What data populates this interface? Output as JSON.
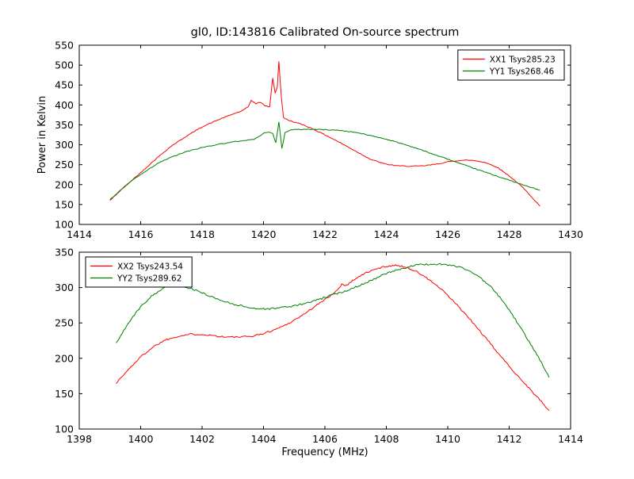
{
  "figure": {
    "title": "gl0, ID:143816 Calibrated On-source spectrum",
    "xlabel": "Frequency (MHz)",
    "ylabel": "Power in Kelvin"
  },
  "chart_data": [
    {
      "type": "line",
      "title": "gl0, ID:143816 Calibrated On-source spectrum",
      "ylabel": "Power in Kelvin",
      "xlabel": "",
      "xlim": [
        1414,
        1430
      ],
      "ylim": [
        100,
        550
      ],
      "xticks": [
        1414,
        1416,
        1418,
        1420,
        1422,
        1424,
        1426,
        1428,
        1430
      ],
      "yticks": [
        100,
        150,
        200,
        250,
        300,
        350,
        400,
        450,
        500,
        550
      ],
      "grid": false,
      "legend_position": "upper right",
      "series": [
        {
          "name": "XX1 Tsys285.23",
          "color": "#ff0000",
          "noise": 1.0,
          "points": [
            [
              1415.0,
              160
            ],
            [
              1415.3,
              182
            ],
            [
              1415.6,
              203
            ],
            [
              1416.0,
              230
            ],
            [
              1416.5,
              265
            ],
            [
              1417.0,
              297
            ],
            [
              1417.5,
              322
            ],
            [
              1418.0,
              345
            ],
            [
              1418.5,
              362
            ],
            [
              1419.0,
              377
            ],
            [
              1419.3,
              385
            ],
            [
              1419.5,
              395
            ],
            [
              1419.6,
              412
            ],
            [
              1419.75,
              403
            ],
            [
              1419.9,
              407
            ],
            [
              1420.05,
              398
            ],
            [
              1420.2,
              395
            ],
            [
              1420.3,
              468
            ],
            [
              1420.38,
              430
            ],
            [
              1420.45,
              445
            ],
            [
              1420.5,
              510
            ],
            [
              1420.58,
              420
            ],
            [
              1420.65,
              368
            ],
            [
              1420.8,
              362
            ],
            [
              1421.0,
              357
            ],
            [
              1421.3,
              350
            ],
            [
              1421.6,
              340
            ],
            [
              1422.0,
              325
            ],
            [
              1422.5,
              305
            ],
            [
              1423.0,
              284
            ],
            [
              1423.5,
              263
            ],
            [
              1424.0,
              251
            ],
            [
              1424.4,
              247
            ],
            [
              1424.8,
              246
            ],
            [
              1425.2,
              247
            ],
            [
              1425.6,
              251
            ],
            [
              1426.0,
              257
            ],
            [
              1426.4,
              261
            ],
            [
              1426.8,
              261
            ],
            [
              1427.2,
              256
            ],
            [
              1427.6,
              244
            ],
            [
              1428.0,
              222
            ],
            [
              1428.4,
              196
            ],
            [
              1428.7,
              172
            ],
            [
              1429.0,
              146
            ]
          ]
        },
        {
          "name": "YY1 Tsys268.46",
          "color": "#007f00",
          "noise": 1.0,
          "points": [
            [
              1415.0,
              162
            ],
            [
              1415.4,
              190
            ],
            [
              1415.8,
              215
            ],
            [
              1416.2,
              235
            ],
            [
              1416.6,
              255
            ],
            [
              1417.0,
              269
            ],
            [
              1417.5,
              283
            ],
            [
              1418.0,
              293
            ],
            [
              1418.5,
              301
            ],
            [
              1419.0,
              307
            ],
            [
              1419.4,
              311
            ],
            [
              1419.7,
              314
            ],
            [
              1419.85,
              320
            ],
            [
              1420.0,
              330
            ],
            [
              1420.15,
              332
            ],
            [
              1420.3,
              328
            ],
            [
              1420.4,
              305
            ],
            [
              1420.5,
              357
            ],
            [
              1420.6,
              291
            ],
            [
              1420.7,
              330
            ],
            [
              1420.85,
              337
            ],
            [
              1421.0,
              338
            ],
            [
              1421.5,
              339
            ],
            [
              1422.0,
              338
            ],
            [
              1422.5,
              336
            ],
            [
              1423.0,
              331
            ],
            [
              1423.5,
              323
            ],
            [
              1424.0,
              314
            ],
            [
              1424.5,
              303
            ],
            [
              1425.0,
              291
            ],
            [
              1425.5,
              277
            ],
            [
              1426.0,
              264
            ],
            [
              1426.5,
              250
            ],
            [
              1427.0,
              237
            ],
            [
              1427.5,
              224
            ],
            [
              1428.0,
              211
            ],
            [
              1428.5,
              198
            ],
            [
              1429.0,
              186
            ]
          ]
        }
      ]
    },
    {
      "type": "line",
      "title": "",
      "ylabel": "",
      "xlabel": "Frequency (MHz)",
      "xlim": [
        1398,
        1414
      ],
      "ylim": [
        100,
        350
      ],
      "xticks": [
        1398,
        1400,
        1402,
        1404,
        1406,
        1408,
        1410,
        1412,
        1414
      ],
      "yticks": [
        100,
        150,
        200,
        250,
        300,
        350
      ],
      "grid": false,
      "legend_position": "upper left",
      "series": [
        {
          "name": "XX2 Tsys243.54",
          "color": "#ff0000",
          "noise": 1.2,
          "points": [
            [
              1399.2,
              165
            ],
            [
              1399.6,
              184
            ],
            [
              1400.0,
              202
            ],
            [
              1400.4,
              216
            ],
            [
              1400.8,
              226
            ],
            [
              1401.2,
              231
            ],
            [
              1401.6,
              234
            ],
            [
              1402.0,
              234
            ],
            [
              1402.4,
              232
            ],
            [
              1402.8,
              230
            ],
            [
              1403.2,
              230
            ],
            [
              1403.6,
              231
            ],
            [
              1404.0,
              235
            ],
            [
              1404.4,
              241
            ],
            [
              1404.8,
              249
            ],
            [
              1405.2,
              259
            ],
            [
              1405.6,
              271
            ],
            [
              1406.0,
              283
            ],
            [
              1406.4,
              296
            ],
            [
              1406.55,
              305
            ],
            [
              1406.7,
              303
            ],
            [
              1407.0,
              313
            ],
            [
              1407.4,
              322
            ],
            [
              1407.8,
              328
            ],
            [
              1408.1,
              331
            ],
            [
              1408.4,
              331
            ],
            [
              1408.7,
              328
            ],
            [
              1409.0,
              322
            ],
            [
              1409.4,
              311
            ],
            [
              1409.8,
              297
            ],
            [
              1410.2,
              280
            ],
            [
              1410.6,
              261
            ],
            [
              1411.0,
              241
            ],
            [
              1411.4,
              220
            ],
            [
              1411.8,
              199
            ],
            [
              1412.2,
              179
            ],
            [
              1412.6,
              160
            ],
            [
              1413.0,
              141
            ],
            [
              1413.3,
              126
            ]
          ]
        },
        {
          "name": "YY2 Tsys289.62",
          "color": "#007f00",
          "noise": 1.2,
          "points": [
            [
              1399.2,
              221
            ],
            [
              1399.6,
              250
            ],
            [
              1400.0,
              273
            ],
            [
              1400.4,
              290
            ],
            [
              1400.8,
              300
            ],
            [
              1401.1,
              303
            ],
            [
              1401.4,
              302
            ],
            [
              1401.8,
              296
            ],
            [
              1402.2,
              289
            ],
            [
              1402.6,
              282
            ],
            [
              1403.0,
              277
            ],
            [
              1403.4,
              273
            ],
            [
              1403.8,
              270
            ],
            [
              1404.2,
              270
            ],
            [
              1404.6,
              272
            ],
            [
              1405.0,
              274
            ],
            [
              1405.4,
              278
            ],
            [
              1405.8,
              283
            ],
            [
              1406.2,
              289
            ],
            [
              1406.6,
              294
            ],
            [
              1407.0,
              301
            ],
            [
              1407.4,
              308
            ],
            [
              1407.8,
              316
            ],
            [
              1408.2,
              323
            ],
            [
              1408.6,
              328
            ],
            [
              1409.0,
              332
            ],
            [
              1409.4,
              333
            ],
            [
              1409.8,
              333
            ],
            [
              1410.2,
              331
            ],
            [
              1410.6,
              326
            ],
            [
              1411.0,
              316
            ],
            [
              1411.4,
              301
            ],
            [
              1411.8,
              281
            ],
            [
              1412.2,
              255
            ],
            [
              1412.6,
              227
            ],
            [
              1413.0,
              198
            ],
            [
              1413.3,
              173
            ]
          ]
        }
      ]
    }
  ]
}
